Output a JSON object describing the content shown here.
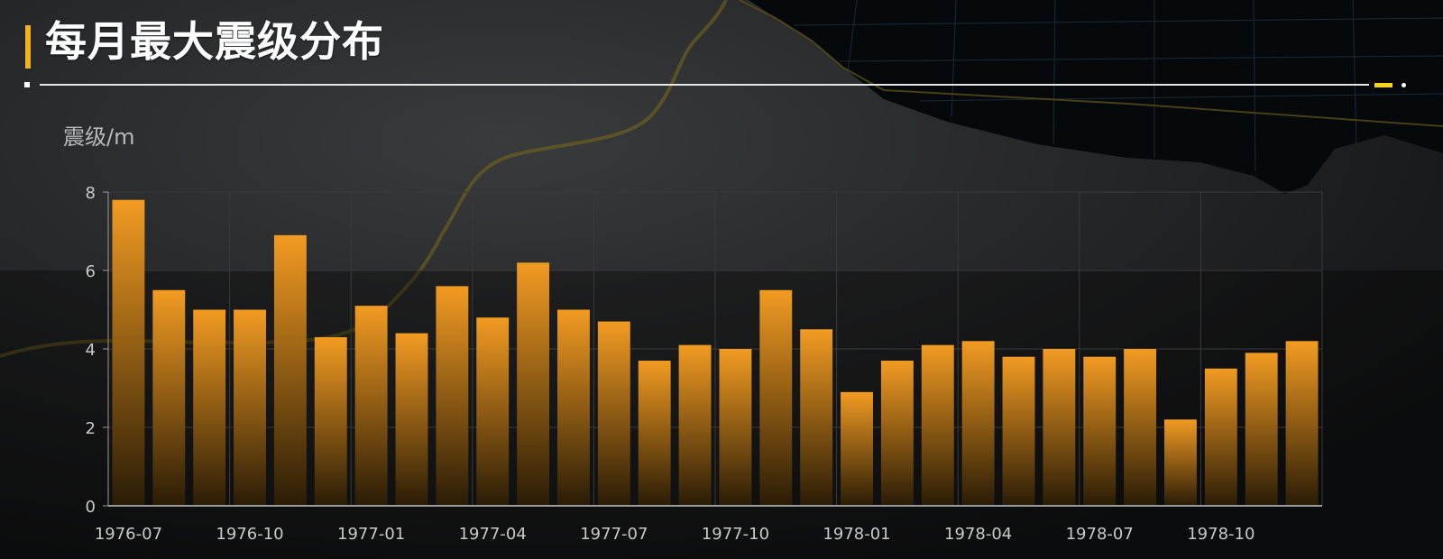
{
  "header": {
    "title": "每月最大震级分布"
  },
  "colors": {
    "bar_top": "#f29b22",
    "bar_bottom": "#2a1c06",
    "accent": "#f2b21b",
    "grid": "#3a3a3a",
    "axis": "#9a9a9a",
    "text": "#c9c9c9"
  },
  "chart_data": {
    "type": "bar",
    "ylabel": "震级/m",
    "ylim": [
      0,
      8
    ],
    "yticks": [
      0,
      2,
      4,
      6,
      8
    ],
    "grid": true,
    "categories": [
      "1976-07",
      "1976-08",
      "1976-09",
      "1976-10",
      "1976-11",
      "1976-12",
      "1977-01",
      "1977-02",
      "1977-03",
      "1977-04",
      "1977-05",
      "1977-06",
      "1977-07",
      "1977-08",
      "1977-09",
      "1977-10",
      "1977-11",
      "1977-12",
      "1978-01",
      "1978-02",
      "1978-03",
      "1978-04",
      "1978-05",
      "1978-06",
      "1978-07",
      "1978-08",
      "1978-09",
      "1978-10",
      "1978-11",
      "1978-12"
    ],
    "xtick_labels": [
      "1976-07",
      "1976-10",
      "1977-01",
      "1977-04",
      "1977-07",
      "1977-10",
      "1978-01",
      "1978-04",
      "1978-07",
      "1978-10"
    ],
    "values": [
      7.8,
      5.5,
      5.0,
      5.0,
      6.9,
      4.3,
      5.1,
      4.4,
      5.6,
      4.8,
      6.2,
      5.0,
      4.7,
      3.7,
      4.1,
      4.0,
      5.5,
      4.5,
      2.9,
      3.7,
      4.1,
      4.2,
      3.8,
      4.0,
      3.8,
      4.0,
      2.2,
      3.5,
      3.9,
      4.2
    ]
  }
}
